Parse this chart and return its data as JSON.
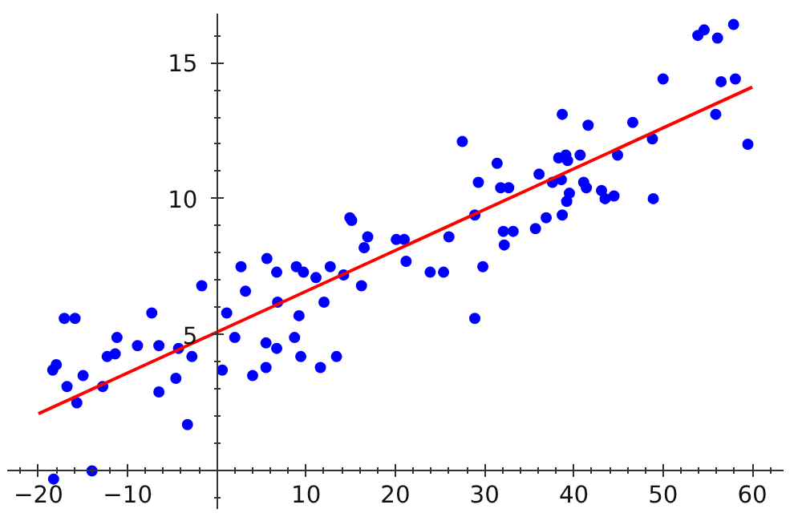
{
  "chart_data": {
    "type": "scatter",
    "xlim": [
      -23.5,
      63.5
    ],
    "ylim": [
      -1.4,
      16.8
    ],
    "xticks": [
      -20,
      -10,
      10,
      20,
      30,
      40,
      50,
      60
    ],
    "yticks": [
      5,
      10,
      15
    ],
    "grid": false,
    "line_style": "solid",
    "series": [
      {
        "color": "#0000ff",
        "marker": "circle",
        "x": [
          -18.4,
          -18.0,
          -16.8,
          -17.1,
          -15.9,
          -15.7,
          -15.0,
          -14.0,
          -18.3,
          -12.8,
          -12.3,
          -11.4,
          -11.2,
          -8.9,
          -7.3,
          -6.5,
          -6.5,
          -4.6,
          -4.3,
          -3.3,
          -2.8,
          -1.7,
          0.6,
          1.1,
          2.0,
          2.7,
          3.2,
          4.0,
          5.5,
          5.5,
          5.6,
          6.7,
          6.7,
          6.8,
          8.7,
          8.9,
          9.2,
          9.4,
          9.7,
          11.1,
          11.6,
          12.0,
          12.7,
          13.4,
          14.2,
          16.2,
          16.5,
          14.9,
          15.1,
          16.9,
          20.1,
          21.0,
          21.2,
          26.0,
          27.5,
          28.9,
          29.3,
          31.4,
          31.8,
          32.7,
          32.1,
          32.2,
          33.2,
          35.7,
          36.1,
          36.9,
          37.6,
          38.6,
          38.7,
          38.3,
          39.1,
          39.3,
          39.5,
          39.2,
          38.7,
          40.7,
          41.1,
          41.4,
          41.6,
          43.1,
          43.5,
          44.5,
          44.9,
          46.6,
          48.8,
          48.9,
          50.0,
          53.9,
          54.6,
          56.1,
          57.9,
          56.5,
          58.1,
          55.9,
          59.5,
          23.9,
          25.4,
          29.8,
          28.9
        ],
        "values": [
          3.7,
          3.9,
          3.1,
          5.6,
          5.6,
          2.5,
          3.5,
          0.0,
          -0.3,
          3.1,
          4.2,
          4.3,
          4.9,
          4.6,
          5.8,
          4.6,
          2.9,
          3.4,
          4.5,
          1.7,
          4.2,
          6.8,
          3.7,
          5.8,
          4.9,
          7.5,
          6.6,
          3.5,
          3.8,
          4.7,
          7.8,
          7.3,
          4.5,
          6.2,
          4.9,
          7.5,
          5.7,
          4.2,
          7.3,
          7.1,
          3.8,
          6.2,
          7.5,
          4.2,
          7.2,
          6.8,
          8.2,
          9.3,
          9.2,
          8.6,
          8.5,
          8.5,
          7.7,
          8.6,
          12.1,
          9.4,
          10.6,
          11.3,
          10.4,
          10.4,
          8.8,
          8.3,
          8.8,
          8.9,
          10.9,
          9.3,
          10.6,
          10.7,
          13.1,
          11.5,
          11.6,
          11.4,
          10.2,
          9.9,
          9.4,
          11.6,
          10.6,
          10.4,
          12.7,
          10.3,
          10.0,
          10.1,
          11.6,
          12.8,
          12.2,
          10.0,
          14.4,
          16.0,
          16.2,
          15.9,
          16.4,
          14.3,
          14.4,
          13.1,
          12.0,
          7.3,
          7.3,
          7.5,
          5.6
        ]
      },
      {
        "type": "line",
        "color": "#ff0000",
        "x": [
          -20,
          60
        ],
        "values": [
          2.1,
          14.1
        ]
      }
    ]
  }
}
